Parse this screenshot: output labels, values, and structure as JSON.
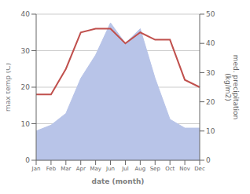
{
  "chart_data": {
    "type": "line",
    "categories": [
      "Jan",
      "Feb",
      "Mar",
      "Apr",
      "May",
      "Jun",
      "Jul",
      "Aug",
      "Sep",
      "Oct",
      "Nov",
      "Dec"
    ],
    "xlabel": "date (month)",
    "ylabel": "max temp (C)",
    "y2label": "med. precipitation\n(kg/m2)",
    "ylim": [
      0,
      40
    ],
    "yticks": [
      0,
      10,
      20,
      30,
      40
    ],
    "y2lim": [
      0,
      50
    ],
    "y2ticks": [
      0,
      10,
      20,
      30,
      40,
      50
    ],
    "grid": true,
    "series": [
      {
        "type": "area",
        "axis": "y2",
        "color": "#b8c4e8",
        "values": [
          10,
          12,
          16,
          28,
          36,
          47,
          40,
          45,
          28,
          14,
          11,
          11
        ]
      },
      {
        "type": "line",
        "color": "#c0504d",
        "values": [
          18,
          18,
          25,
          35,
          36,
          36,
          32,
          35,
          33,
          33,
          22,
          20
        ]
      }
    ]
  }
}
